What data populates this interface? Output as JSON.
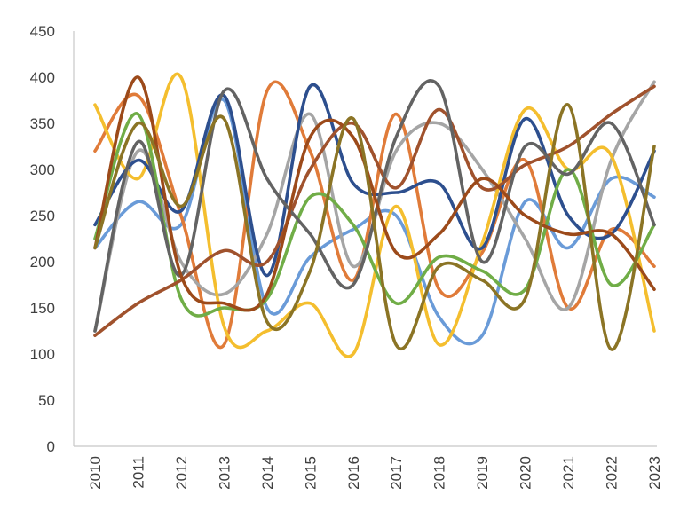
{
  "chart_data": {
    "type": "line",
    "smooth": true,
    "grid": false,
    "legend": "none",
    "title": "",
    "xlabel": "",
    "ylabel": "",
    "ylim": [
      0,
      450
    ],
    "yticks": [
      0,
      50,
      100,
      150,
      200,
      250,
      300,
      350,
      400,
      450
    ],
    "categories": [
      "2010",
      "2011",
      "2012",
      "2013",
      "2014",
      "2015",
      "2016",
      "2017",
      "2018",
      "2019",
      "2020",
      "2021",
      "2022",
      "2023"
    ],
    "series": [
      {
        "color": "#6A9BD8",
        "values": [
          215,
          265,
          240,
          375,
          150,
          205,
          235,
          250,
          140,
          120,
          265,
          215,
          290,
          270
        ]
      },
      {
        "color": "#E07B39",
        "values": [
          320,
          380,
          250,
          110,
          385,
          320,
          180,
          360,
          170,
          210,
          310,
          150,
          235,
          195
        ]
      },
      {
        "color": "#A5A5A5",
        "values": [
          125,
          320,
          200,
          165,
          230,
          360,
          195,
          320,
          350,
          300,
          225,
          150,
          310,
          395
        ]
      },
      {
        "color": "#F4BE2E",
        "values": [
          370,
          290,
          400,
          130,
          125,
          155,
          100,
          260,
          110,
          220,
          365,
          300,
          315,
          125
        ]
      },
      {
        "color": "#2D4F8E",
        "values": [
          240,
          310,
          255,
          380,
          185,
          390,
          285,
          275,
          285,
          215,
          355,
          250,
          230,
          320
        ]
      },
      {
        "color": "#70AD47",
        "values": [
          225,
          360,
          160,
          150,
          160,
          270,
          240,
          155,
          205,
          190,
          170,
          300,
          175,
          240
        ]
      },
      {
        "color": "#A0522D",
        "values": [
          120,
          155,
          180,
          212,
          200,
          300,
          350,
          280,
          365,
          280,
          305,
          325,
          360,
          390
        ]
      },
      {
        "color": "#636363",
        "values": [
          125,
          330,
          185,
          385,
          290,
          230,
          175,
          335,
          390,
          200,
          325,
          295,
          350,
          240
        ]
      },
      {
        "color": "#9C4A1A",
        "values": [
          215,
          400,
          185,
          155,
          165,
          335,
          335,
          210,
          230,
          290,
          250,
          230,
          230,
          170
        ]
      },
      {
        "color": "#8B7425",
        "values": [
          215,
          350,
          260,
          355,
          135,
          190,
          355,
          110,
          195,
          180,
          160,
          370,
          105,
          325
        ]
      }
    ]
  }
}
